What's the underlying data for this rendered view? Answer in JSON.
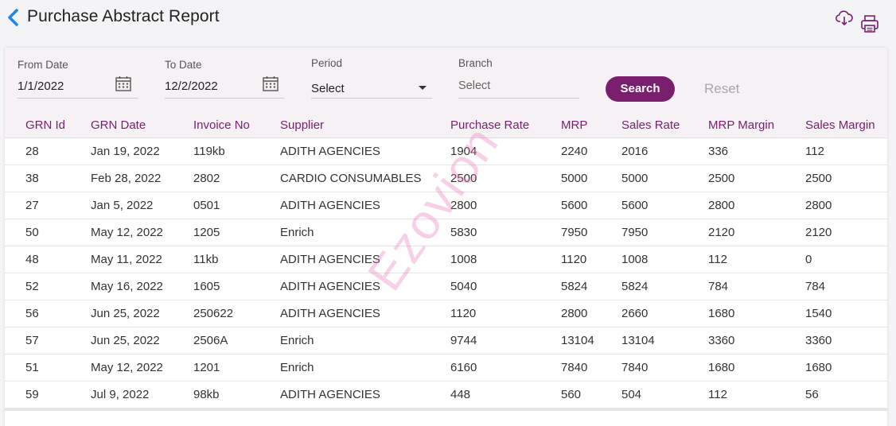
{
  "header": {
    "title": "Purchase Abstract Report",
    "back_icon": "chevron-left-icon",
    "download_icon": "cloud-download-icon",
    "print_icon": "printer-icon"
  },
  "filters": {
    "from_date": {
      "label": "From Date",
      "value": "1/1/2022",
      "icon": "calendar-icon"
    },
    "to_date": {
      "label": "To Date",
      "value": "12/2/2022",
      "icon": "calendar-icon"
    },
    "period": {
      "label": "Period",
      "value": "Select"
    },
    "branch": {
      "label": "Branch",
      "placeholder": "Select"
    },
    "search_label": "Search",
    "reset_label": "Reset"
  },
  "table": {
    "columns": [
      "GRN Id",
      "GRN Date",
      "Invoice No",
      "Supplier",
      "Purchase Rate",
      "MRP",
      "Sales Rate",
      "MRP Margin",
      "Sales Margin"
    ],
    "rows": [
      [
        "28",
        "Jan 19, 2022",
        "119kb",
        "ADITH AGENCIES",
        "1904",
        "2240",
        "2016",
        "336",
        "112"
      ],
      [
        "38",
        "Feb 28, 2022",
        "2802",
        "CARDIO CONSUMABLES",
        "2500",
        "5000",
        "5000",
        "2500",
        "2500"
      ],
      [
        "27",
        "Jan 5, 2022",
        "0501",
        "ADITH AGENCIES",
        "2800",
        "5600",
        "5600",
        "2800",
        "2800"
      ],
      [
        "50",
        "May 12, 2022",
        "1205",
        "Enrich",
        "5830",
        "7950",
        "7950",
        "2120",
        "2120"
      ],
      [
        "48",
        "May 11, 2022",
        "11kb",
        "ADITH AGENCIES",
        "1008",
        "1120",
        "1008",
        "112",
        "0"
      ],
      [
        "52",
        "May 16, 2022",
        "1605",
        "ADITH AGENCIES",
        "5040",
        "5824",
        "5824",
        "784",
        "784"
      ],
      [
        "56",
        "Jun 25, 2022",
        "250622",
        "ADITH AGENCIES",
        "1120",
        "2800",
        "2660",
        "1680",
        "1540"
      ],
      [
        "57",
        "Jun 25, 2022",
        "2506A",
        "Enrich",
        "9744",
        "13104",
        "13104",
        "3360",
        "3360"
      ],
      [
        "51",
        "May 12, 2022",
        "1201",
        "Enrich",
        "6160",
        "7840",
        "7840",
        "1680",
        "1680"
      ],
      [
        "59",
        "Jul 9, 2022",
        "98kb",
        "ADITH AGENCIES",
        "448",
        "560",
        "504",
        "112",
        "56"
      ]
    ]
  },
  "watermark": "Ezovion",
  "colors": {
    "accent": "#7a1e6e",
    "back_icon": "#1e88e5",
    "filter_background": "#f6f1f5"
  }
}
